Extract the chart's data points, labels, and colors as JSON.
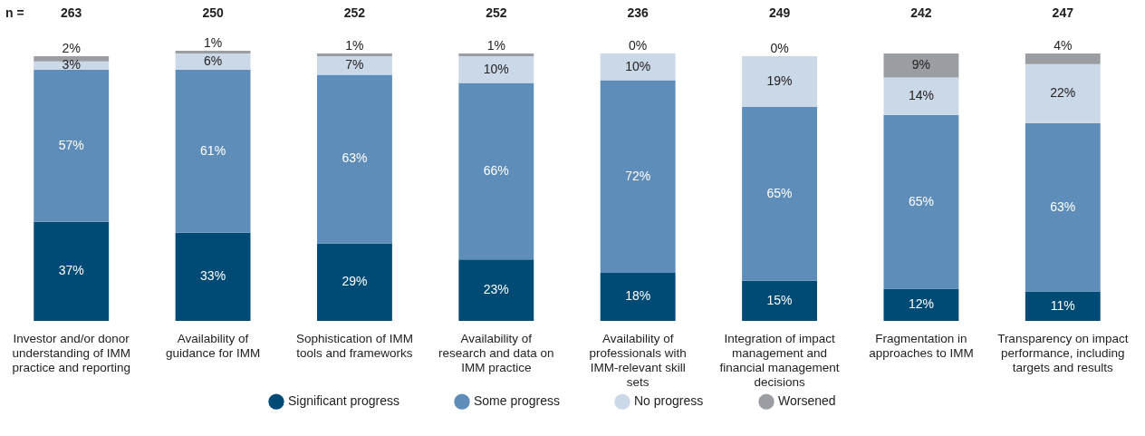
{
  "chart_data": {
    "type": "bar",
    "stacked": true,
    "legend": "bottom",
    "categories": [
      "Investor and/or donor understanding of IMM practice and reporting",
      "Availability of guidance for IMM",
      "Sophistication of IMM tools and frameworks",
      "Availability of research and data on IMM practice",
      "Availability of professionals with IMM-relevant skill sets",
      "Integration of impact management and financial management decisions",
      "Fragmentation in approaches to IMM",
      "Transparency on impact performance, including targets and results"
    ],
    "series": [
      {
        "name": "Significant progress",
        "color": "#004b76",
        "values": [
          37,
          33,
          29,
          23,
          18,
          15,
          12,
          11
        ],
        "value_labels": [
          "37%",
          "33%",
          "29%",
          "23%",
          "18%",
          "15%",
          "12%",
          "11%"
        ]
      },
      {
        "name": "Some progress",
        "color": "#5f8db9",
        "values": [
          57,
          61,
          63,
          66,
          72,
          65,
          65,
          63
        ],
        "value_labels": [
          "57%",
          "61%",
          "63%",
          "66%",
          "72%",
          "65%",
          "65%",
          "63%"
        ]
      },
      {
        "name": "No progress",
        "color": "#cbd8e7",
        "values": [
          3,
          6,
          7,
          10,
          10,
          19,
          14,
          22
        ],
        "value_labels": [
          "3%",
          "6%",
          "7%",
          "10%",
          "10%",
          "19%",
          "14%",
          "22%"
        ]
      },
      {
        "name": "Worsened",
        "color": "#9a9ea2",
        "values": [
          2,
          1,
          1,
          1,
          0,
          0,
          9,
          4
        ],
        "value_labels": [
          "2%",
          "1%",
          "1%",
          "1%",
          "0%",
          "0%",
          "9%",
          "4%"
        ]
      }
    ],
    "annotations": [
      "n =",
      "263",
      "250",
      "252",
      "252",
      "236",
      "249",
      "242",
      "247"
    ]
  }
}
